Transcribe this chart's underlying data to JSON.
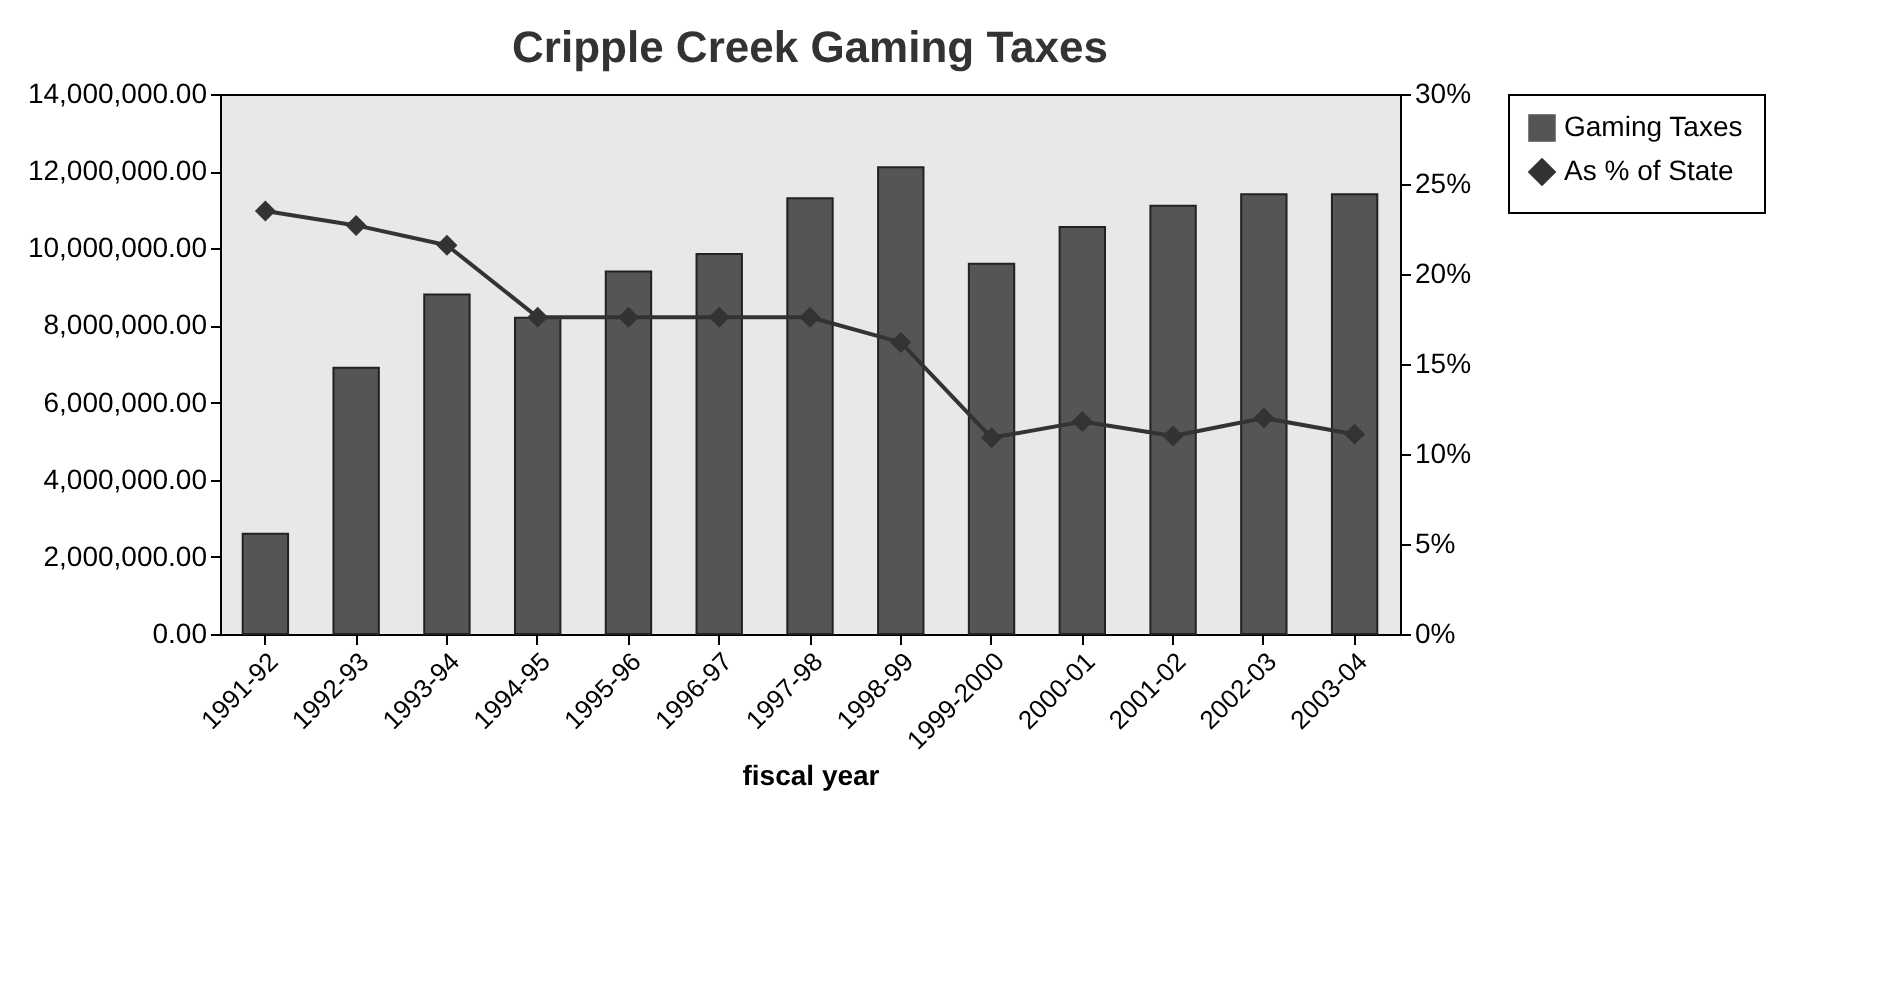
{
  "chart_data": {
    "type": "bar",
    "title": "Cripple Creek Gaming Taxes",
    "xlabel": "fiscal year",
    "categories": [
      "1991-92",
      "1992-93",
      "1993-94",
      "1994-95",
      "1995-96",
      "1996-97",
      "1997-98",
      "1998-99",
      "1999-2000",
      "2000-01",
      "2001-02",
      "2002-03",
      "2003-04"
    ],
    "series": [
      {
        "name": "Gaming Taxes",
        "color": "#555555",
        "values": [
          2600000,
          6900000,
          8800000,
          8200000,
          9400000,
          9850000,
          11300000,
          12100000,
          9600000,
          10550000,
          11100000,
          11400000,
          11400000
        ]
      },
      {
        "name": "As % of State",
        "type": "line",
        "axis": "y2",
        "color": "#333333",
        "marker": "diamond",
        "values": [
          23.5,
          22.7,
          21.6,
          17.6,
          17.6,
          17.6,
          17.6,
          16.2,
          10.9,
          11.8,
          11.0,
          12.0,
          11.1
        ]
      }
    ],
    "ylim": [
      0,
      14000000
    ],
    "yticks": [
      {
        "value": 0,
        "label": "0.00"
      },
      {
        "value": 2000000,
        "label": "2,000,000.00"
      },
      {
        "value": 4000000,
        "label": "4,000,000.00"
      },
      {
        "value": 6000000,
        "label": "6,000,000.00"
      },
      {
        "value": 8000000,
        "label": "8,000,000.00"
      },
      {
        "value": 10000000,
        "label": "10,000,000.00"
      },
      {
        "value": 12000000,
        "label": "12,000,000.00"
      },
      {
        "value": 14000000,
        "label": "14,000,000.00"
      }
    ],
    "y2lim": [
      0,
      30
    ],
    "y2ticks": [
      {
        "value": 0,
        "label": "0%"
      },
      {
        "value": 5,
        "label": "5%"
      },
      {
        "value": 10,
        "label": "10%"
      },
      {
        "value": 15,
        "label": "15%"
      },
      {
        "value": 20,
        "label": "20%"
      },
      {
        "value": 25,
        "label": "25%"
      },
      {
        "value": 30,
        "label": "30%"
      }
    ],
    "grid": false,
    "legend": "right"
  }
}
